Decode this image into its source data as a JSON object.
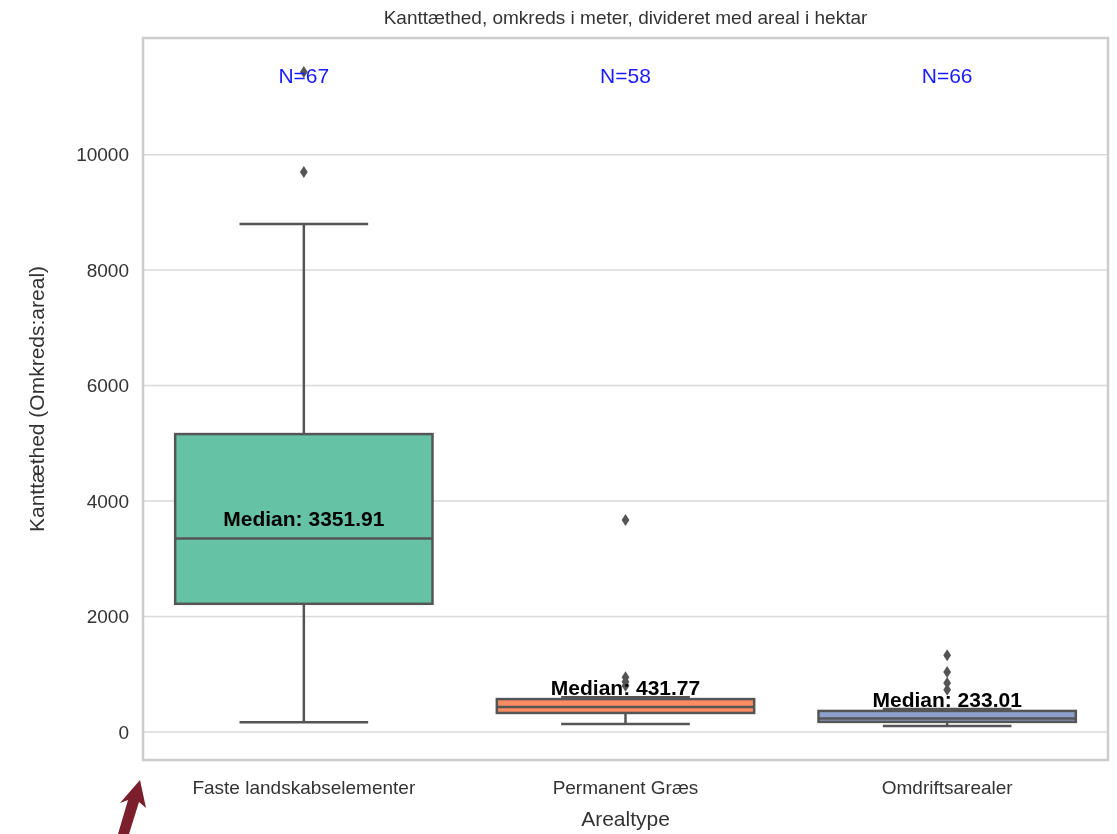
{
  "chart_data": {
    "type": "box",
    "title": "Kanttæthed, omkreds i meter, divideret med areal i hektar",
    "xlabel": "Arealtype",
    "ylabel": "Kanttæthed (Omkreds:areal)",
    "categories": [
      "Faste landskabselementer",
      "Permanent Græs",
      "Omdriftsarealer"
    ],
    "colors": [
      "#66c2a5",
      "#fc8d62",
      "#8da0cb"
    ],
    "boxes": [
      {
        "low": 170,
        "q1": 2220,
        "median": 3351.91,
        "q3": 5160,
        "high": 8800,
        "outliers": [
          9700,
          11430
        ]
      },
      {
        "low": 140,
        "q1": 330,
        "median": 431.77,
        "q3": 570,
        "high": 600,
        "outliers": [
          800,
          870,
          950,
          3670
        ]
      },
      {
        "low": 105,
        "q1": 175,
        "median": 233.01,
        "q3": 365,
        "high": 400,
        "outliers": [
          730,
          850,
          1040,
          1330
        ]
      }
    ],
    "annotations": [
      {
        "text": "Median: 3351.91",
        "x": "Faste landskabselementer",
        "y": 3351.91
      },
      {
        "text": "Median: 431.77",
        "x": "Permanent Græs",
        "y": 431.77
      },
      {
        "text": "Median: 233.01",
        "x": "Omdriftsarealer",
        "y": 233.01
      },
      "N=67",
      "N=58",
      "N=66"
    ],
    "ylim": [
      -485,
      12020
    ],
    "yticks": [
      0,
      2000,
      4000,
      6000,
      8000,
      10000
    ],
    "grid": "y",
    "marker": "diamond"
  }
}
